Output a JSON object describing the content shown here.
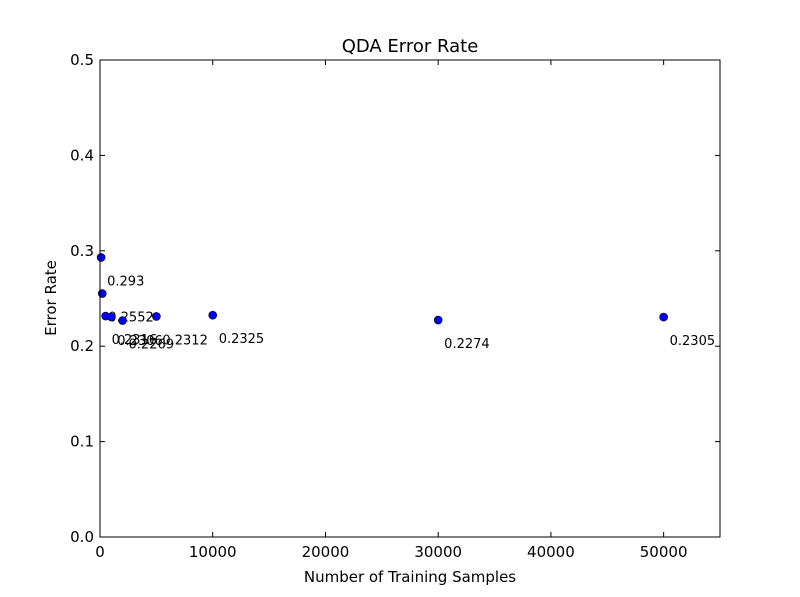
{
  "chart_data": {
    "type": "scatter",
    "title": "QDA Error Rate",
    "xlabel": "Number of Training Samples",
    "ylabel": "Error Rate",
    "xlim": [
      0,
      55000
    ],
    "ylim": [
      0.0,
      0.5
    ],
    "x_ticks": [
      0,
      10000,
      20000,
      30000,
      40000,
      50000
    ],
    "x_tick_labels": [
      "0",
      "10000",
      "20000",
      "30000",
      "40000",
      "50000"
    ],
    "y_ticks": [
      0.0,
      0.1,
      0.2,
      0.3,
      0.4,
      0.5
    ],
    "y_tick_labels": [
      "0.0",
      "0.1",
      "0.2",
      "0.3",
      "0.4",
      "0.5"
    ],
    "grid": false,
    "legend": "none",
    "marker_color": "#0000ff",
    "points": [
      {
        "x": 100,
        "y": 0.293,
        "label": "0.293"
      },
      {
        "x": 200,
        "y": 0.2552,
        "label": "0.2552"
      },
      {
        "x": 500,
        "y": 0.2316,
        "label": "0.2316"
      },
      {
        "x": 1000,
        "y": 0.2306,
        "label": "0.2306"
      },
      {
        "x": 2000,
        "y": 0.2269,
        "label": "0.2269"
      },
      {
        "x": 5000,
        "y": 0.2312,
        "label": "0.2312"
      },
      {
        "x": 10000,
        "y": 0.2325,
        "label": "0.2325"
      },
      {
        "x": 30000,
        "y": 0.2274,
        "label": "0.2274"
      },
      {
        "x": 50000,
        "y": 0.2305,
        "label": "0.2305"
      }
    ]
  }
}
